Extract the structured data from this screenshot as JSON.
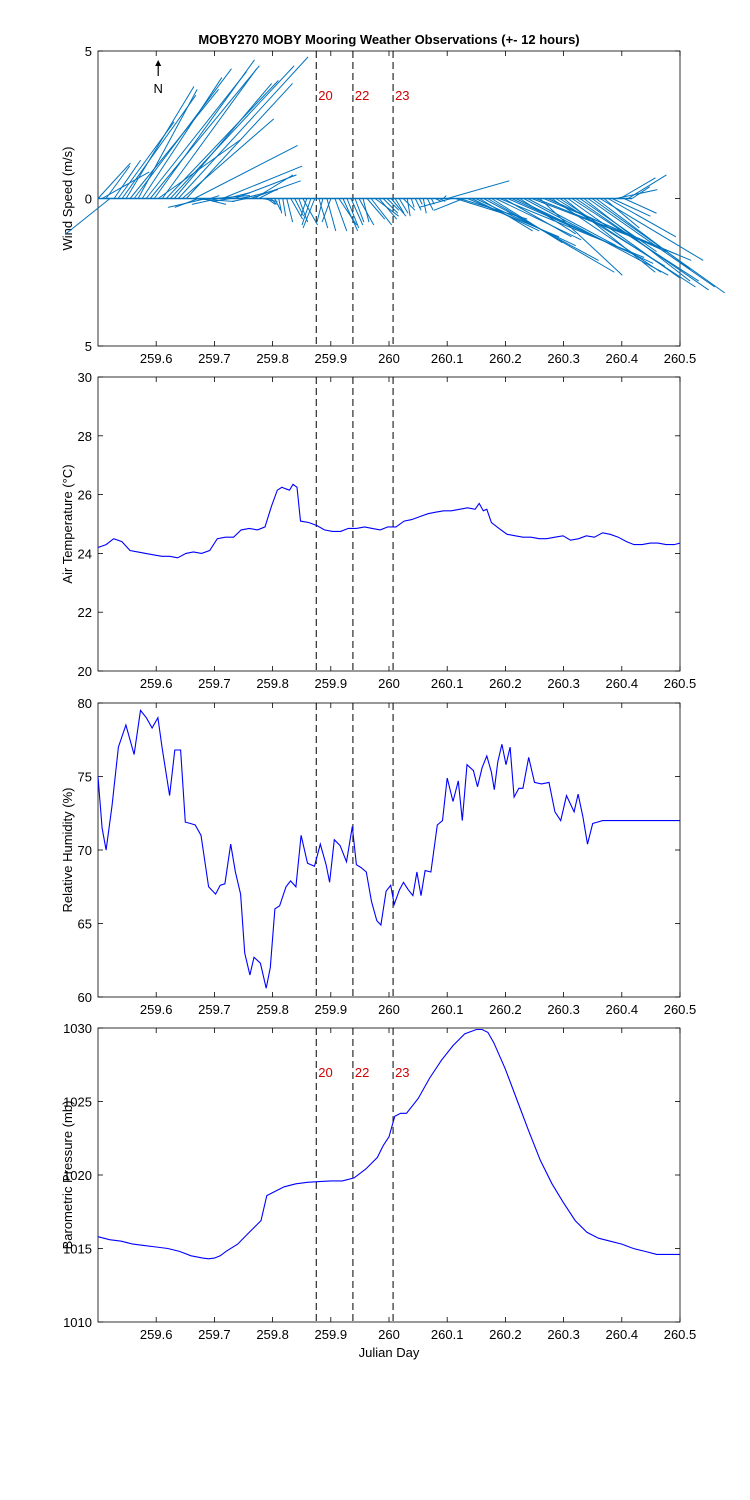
{
  "title": "MOBY270 MOBY Mooring Weather Observations (+- 12 hours)",
  "colors": {
    "line": "#0000ff",
    "wind": "#0072bd",
    "marker": "#d00000",
    "axis": "#000000"
  },
  "chart_data": [
    {
      "id": "wind",
      "type": "line",
      "subtype": "wind-stick",
      "ylabel": "Wind Speed (m/s)",
      "xlim": [
        259.5,
        260.5
      ],
      "ylim": [
        -5,
        5
      ],
      "yticks": [
        -5,
        0,
        5
      ],
      "ytick_labels": [
        "5",
        "0",
        "5"
      ],
      "xticks": [
        259.6,
        259.7,
        259.8,
        259.9,
        260,
        260.1,
        260.2,
        260.3,
        260.4,
        260.5
      ],
      "xtick_labels": [
        "259.6",
        "259.7",
        "259.8",
        "259.9",
        "260",
        "260.1",
        "260.2",
        "260.3",
        "260.4",
        "260.5"
      ],
      "north_label": "N",
      "markers": [
        {
          "x": 259.875,
          "label": "20"
        },
        {
          "x": 259.938,
          "label": "22"
        },
        {
          "x": 260.007,
          "label": "23"
        }
      ],
      "series": [
        {
          "name": "wind",
          "x_start": 259.5,
          "x_step": 0.0069,
          "u": [
            1.1,
            1.6,
            0.8,
            -1.5,
            0.9,
            1.9,
            2.5,
            2.3,
            3.0,
            3.3,
            2.0,
            2.7,
            3.4,
            3.7,
            3.4,
            2.8,
            3.2,
            3.8,
            4.2,
            3.3,
            4.4,
            3.1,
            3.6,
            1.5,
            3.5,
            -0.8,
            0.8,
            -1.3,
            0.3,
            1.2,
            -0.9,
            2.7,
            0.8,
            -0.6,
            2.1,
            0.6,
            1.2,
            -0.5,
            1.7,
            1.3,
            0.6,
            0.5,
            0.3,
            0.2,
            0.2,
            0.1,
            0.1,
            0.2,
            0.4,
            0.3,
            0.3,
            0.5,
            -0.2,
            -0.3,
            -0.4,
            0.3,
            -0.2,
            0.3,
            -0.3,
            0.4,
            0.6,
            0.5,
            0.4,
            0.4,
            0.3,
            0.5,
            0.2,
            0.6,
            0.7,
            0.8,
            0.6,
            0.5,
            0.4,
            0.5,
            0.3,
            0.3,
            0.4,
            0.1,
            0.1,
            0.2,
            0.1,
            0.1,
            0.2,
            0.1,
            0.2,
            0.2,
            0.1,
            2.1,
            -1.1,
            1.6,
            2.3,
            -1.0,
            3.1,
            2.3,
            3.4,
            1.8,
            3.9,
            4.3,
            2.4,
            2.9,
            4.9,
            2.3,
            3.2,
            4.8,
            2.9,
            1.9,
            4.9,
            3.0,
            3.4,
            4.8,
            2.8,
            5.0,
            4.0,
            3.7,
            3.7,
            4.6,
            3.1,
            3.8,
            4.3,
            4.5,
            2.6,
            3.6,
            4.3,
            4.5,
            3.2,
            3.5,
            1.2,
            2.3,
            1.3,
            1.4,
            1.2,
            1.1,
            1.3,
            0.6
          ],
          "v": [
            1.2,
            0.9,
            1.1,
            -1.2,
            1.3,
            2.6,
            3.5,
            3.8,
            3.7,
            4.4,
            3.7,
            4.1,
            4.3,
            4.5,
            4.7,
            2.0,
            4.4,
            4.0,
            4.5,
            3.9,
            4.8,
            2.7,
            3.9,
            -0.1,
            1.8,
            -0.3,
            -0.2,
            -0.3,
            0.1,
            0.1,
            -0.2,
            1.1,
            0.2,
            -0.1,
            0.8,
            0.1,
            0.3,
            -0.1,
            0.6,
            0.8,
            0.3,
            -0.1,
            -0.2,
            -0.2,
            -0.4,
            -0.5,
            -0.6,
            -0.8,
            -0.7,
            -0.6,
            -0.8,
            -0.9,
            -0.6,
            -0.9,
            -1.0,
            -1.0,
            -0.8,
            -1.1,
            -0.8,
            -1.1,
            -0.9,
            -1.1,
            -1.0,
            -0.9,
            -0.8,
            -0.9,
            -0.8,
            -0.7,
            -0.9,
            -0.6,
            -0.7,
            -0.5,
            -0.4,
            -0.6,
            -0.5,
            -0.5,
            -0.4,
            -0.6,
            -0.3,
            -0.4,
            -0.2,
            -0.5,
            -0.4,
            -0.2,
            -0.1,
            -0.1,
            0.1,
            0.6,
            -0.3,
            -0.5,
            -0.7,
            -0.4,
            -1.3,
            -1.1,
            -1.6,
            -1.1,
            -2.1,
            -2.5,
            -1.5,
            -1.4,
            -2.0,
            -1.3,
            -1.4,
            -2.2,
            -1.4,
            -1.2,
            -2.6,
            -1.6,
            -1.3,
            -1.9,
            -2.6,
            -2.1,
            -1.8,
            -2.5,
            -2.3,
            -3.0,
            -2.5,
            -2.7,
            -2.8,
            -3.1,
            -1.8,
            -2.8,
            -3.0,
            -3.2,
            -2.4,
            -2.1,
            -1.0,
            -1.3,
            -0.6,
            0.3,
            0.7,
            -0.5,
            0.8,
            0.4
          ]
        }
      ]
    },
    {
      "id": "airtemp",
      "type": "line",
      "ylabel": "Air Temperature (°C)",
      "xlim": [
        259.5,
        260.5
      ],
      "ylim": [
        20,
        30
      ],
      "yticks": [
        20,
        22,
        24,
        26,
        28,
        30
      ],
      "ytick_labels": [
        "20",
        "22",
        "24",
        "26",
        "28",
        "30"
      ],
      "xticks": [
        259.6,
        259.7,
        259.8,
        259.9,
        260,
        260.1,
        260.2,
        260.3,
        260.4,
        260.5
      ],
      "xtick_labels": [
        "259.6",
        "259.7",
        "259.8",
        "259.9",
        "260",
        "260.1",
        "260.2",
        "260.3",
        "260.4",
        "260.5"
      ],
      "markers": [
        {
          "x": 259.875,
          "label": ""
        },
        {
          "x": 259.938,
          "label": ""
        },
        {
          "x": 260.007,
          "label": ""
        }
      ],
      "series": [
        {
          "name": "Air Temperature",
          "x": [
            259.5,
            259.514,
            259.527,
            259.541,
            259.555,
            259.568,
            259.582,
            259.596,
            259.61,
            259.623,
            259.637,
            259.651,
            259.664,
            259.678,
            259.692,
            259.705,
            259.719,
            259.733,
            259.746,
            259.76,
            259.774,
            259.787,
            259.798,
            259.808,
            259.816,
            259.822,
            259.829,
            259.835,
            259.842,
            259.848,
            259.862,
            259.876,
            259.889,
            259.903,
            259.917,
            259.93,
            259.944,
            259.958,
            259.971,
            259.985,
            259.998,
            260.012,
            260.026,
            260.039,
            260.053,
            260.067,
            260.08,
            260.094,
            260.107,
            260.121,
            260.135,
            260.148,
            260.155,
            260.162,
            260.168,
            260.176,
            260.189,
            260.203,
            260.217,
            260.23,
            260.244,
            260.258,
            260.271,
            260.285,
            260.299,
            260.312,
            260.326,
            260.339,
            260.353,
            260.367,
            260.38,
            260.394,
            260.408,
            260.421,
            260.435,
            260.449,
            260.462,
            260.476,
            260.49,
            260.5
          ],
          "y": [
            24.2,
            24.3,
            24.5,
            24.4,
            24.1,
            24.05,
            24.0,
            23.95,
            23.9,
            23.9,
            23.85,
            24.0,
            24.05,
            24.0,
            24.1,
            24.5,
            24.55,
            24.55,
            24.8,
            24.85,
            24.8,
            24.9,
            25.6,
            26.15,
            26.25,
            26.2,
            26.15,
            26.35,
            26.25,
            25.1,
            25.05,
            24.95,
            24.8,
            24.75,
            24.75,
            24.85,
            24.85,
            24.9,
            24.85,
            24.8,
            24.9,
            24.9,
            25.1,
            25.15,
            25.25,
            25.35,
            25.4,
            25.45,
            25.45,
            25.5,
            25.55,
            25.5,
            25.7,
            25.45,
            25.5,
            25.05,
            24.85,
            24.65,
            24.6,
            24.55,
            24.55,
            24.5,
            24.5,
            24.55,
            24.6,
            24.45,
            24.5,
            24.6,
            24.55,
            24.7,
            24.65,
            24.55,
            24.4,
            24.3,
            24.3,
            24.35,
            24.35,
            24.3,
            24.3,
            24.35
          ]
        }
      ]
    },
    {
      "id": "humidity",
      "type": "line",
      "ylabel": "Relative Humidity (%)",
      "xlim": [
        259.5,
        260.5
      ],
      "ylim": [
        60,
        80
      ],
      "yticks": [
        60,
        65,
        70,
        75,
        80
      ],
      "ytick_labels": [
        "60",
        "65",
        "70",
        "75",
        "80"
      ],
      "xticks": [
        259.6,
        259.7,
        259.8,
        259.9,
        260,
        260.1,
        260.2,
        260.3,
        260.4,
        260.5
      ],
      "xtick_labels": [
        "259.6",
        "259.7",
        "259.8",
        "259.9",
        "260",
        "260.1",
        "260.2",
        "260.3",
        "260.4",
        "260.5"
      ],
      "markers": [
        {
          "x": 259.875,
          "label": ""
        },
        {
          "x": 259.938,
          "label": ""
        },
        {
          "x": 260.007,
          "label": ""
        }
      ],
      "series": [
        {
          "name": "Relative Humidity",
          "x": [
            259.5,
            259.507,
            259.514,
            259.524,
            259.535,
            259.548,
            259.562,
            259.573,
            259.583,
            259.593,
            259.603,
            259.61,
            259.623,
            259.632,
            259.642,
            259.65,
            259.659,
            259.667,
            259.677,
            259.69,
            259.702,
            259.71,
            259.718,
            259.728,
            259.736,
            259.745,
            259.752,
            259.761,
            259.768,
            259.779,
            259.789,
            259.796,
            259.804,
            259.812,
            259.823,
            259.831,
            259.84,
            259.849,
            259.86,
            259.872,
            259.882,
            259.892,
            259.898,
            259.906,
            259.916,
            259.927,
            259.937,
            259.944,
            259.952,
            259.961,
            259.97,
            259.979,
            259.986,
            259.995,
            260.003,
            260.009,
            260.018,
            260.025,
            260.033,
            260.041,
            260.048,
            260.055,
            260.062,
            260.072,
            260.083,
            260.092,
            260.1,
            260.11,
            260.119,
            260.126,
            260.134,
            260.145,
            260.152,
            260.16,
            260.168,
            260.176,
            260.181,
            260.187,
            260.194,
            260.201,
            260.208,
            260.215,
            260.223,
            260.23,
            260.24,
            260.25,
            260.262,
            260.275,
            260.285,
            260.295,
            260.305,
            260.318,
            260.325,
            260.333,
            260.341,
            260.35,
            260.358,
            260.367,
            260.375,
            260.384,
            260.392,
            260.4,
            260.408,
            260.419,
            260.428,
            260.436,
            260.445,
            260.452,
            260.462,
            260.472,
            260.483,
            260.494,
            260.5
          ],
          "y": [
            75.0,
            71.5,
            70.0,
            73.0,
            77.0,
            78.5,
            76.5,
            79.5,
            79.0,
            78.3,
            79.0,
            77.0,
            73.7,
            76.8,
            76.8,
            71.9,
            71.8,
            71.7,
            71.0,
            67.5,
            67.0,
            67.6,
            67.7,
            70.4,
            68.5,
            67.0,
            63.0,
            61.5,
            62.7,
            62.3,
            60.6,
            62.0,
            66.0,
            66.2,
            67.5,
            67.9,
            67.5,
            71.0,
            69.1,
            68.9,
            70.4,
            69.0,
            67.8,
            70.7,
            70.3,
            69.2,
            71.6,
            69.0,
            68.8,
            68.5,
            66.5,
            65.2,
            64.9,
            67.2,
            67.6,
            66.3,
            67.3,
            67.8,
            67.3,
            66.9,
            68.5,
            66.9,
            68.6,
            68.5,
            71.7,
            72.0,
            74.9,
            73.3,
            74.7,
            72.0,
            75.8,
            75.4,
            74.3,
            75.6,
            76.4,
            75.3,
            74.1,
            76.0,
            77.2,
            75.8,
            77.0,
            73.6,
            74.2,
            74.2,
            76.3,
            74.6,
            74.5,
            74.6,
            72.6,
            72.0,
            73.7,
            72.6,
            73.8,
            72.3,
            70.4,
            71.8,
            71.9,
            72.0,
            72.0,
            72.0,
            72.0,
            72.0,
            72.0,
            72.0,
            72.0,
            72.0,
            72.0,
            72.0,
            72.0,
            72.0,
            72.0,
            72.0,
            72.0
          ]
        }
      ]
    },
    {
      "id": "pressure",
      "type": "line",
      "ylabel": "Barometric Pressure (mb)",
      "xlabel": "Julian Day",
      "xlim": [
        259.5,
        260.5
      ],
      "ylim": [
        1010,
        1030
      ],
      "yticks": [
        1010,
        1015,
        1020,
        1025,
        1030
      ],
      "ytick_labels": [
        "1010",
        "1015",
        "1020",
        "1025",
        "1030"
      ],
      "xticks": [
        259.6,
        259.7,
        259.8,
        259.9,
        260,
        260.1,
        260.2,
        260.3,
        260.4,
        260.5
      ],
      "xtick_labels": [
        "259.6",
        "259.7",
        "259.8",
        "259.9",
        "260",
        "260.1",
        "260.2",
        "260.3",
        "260.4",
        "260.5"
      ],
      "markers": [
        {
          "x": 259.875,
          "label": "20"
        },
        {
          "x": 259.938,
          "label": "22"
        },
        {
          "x": 260.007,
          "label": "23"
        }
      ],
      "series": [
        {
          "name": "Barometric Pressure",
          "x": [
            259.5,
            259.52,
            259.54,
            259.56,
            259.58,
            259.6,
            259.62,
            259.64,
            259.66,
            259.68,
            259.69,
            259.7,
            259.71,
            259.72,
            259.74,
            259.76,
            259.78,
            259.79,
            259.8,
            259.82,
            259.84,
            259.86,
            259.88,
            259.9,
            259.92,
            259.94,
            259.96,
            259.98,
            259.99,
            260.0,
            260.01,
            260.02,
            260.03,
            260.05,
            260.07,
            260.09,
            260.11,
            260.13,
            260.15,
            260.16,
            260.17,
            260.18,
            260.2,
            260.22,
            260.24,
            260.26,
            260.28,
            260.3,
            260.32,
            260.34,
            260.36,
            260.38,
            260.4,
            260.42,
            260.44,
            260.46,
            260.48,
            260.5
          ],
          "y": [
            1015.8,
            1015.6,
            1015.5,
            1015.3,
            1015.2,
            1015.1,
            1015.0,
            1014.8,
            1014.5,
            1014.35,
            1014.3,
            1014.35,
            1014.5,
            1014.8,
            1015.3,
            1016.1,
            1016.9,
            1018.6,
            1018.8,
            1019.2,
            1019.4,
            1019.5,
            1019.55,
            1019.6,
            1019.6,
            1019.8,
            1020.4,
            1021.2,
            1022.0,
            1022.6,
            1024.0,
            1024.2,
            1024.2,
            1025.2,
            1026.6,
            1027.8,
            1028.8,
            1029.6,
            1029.9,
            1029.9,
            1029.7,
            1029.0,
            1027.2,
            1025.1,
            1023.0,
            1021.0,
            1019.4,
            1018.1,
            1016.9,
            1016.1,
            1015.7,
            1015.5,
            1015.3,
            1015.0,
            1014.8,
            1014.6,
            1014.6,
            1014.6
          ]
        }
      ]
    }
  ]
}
